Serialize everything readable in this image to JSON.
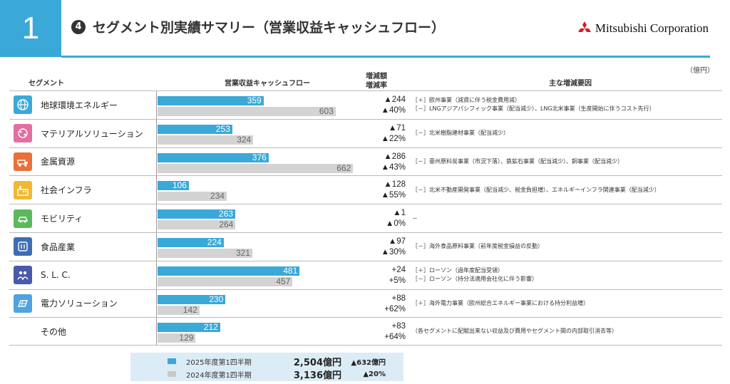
{
  "header": {
    "section_number": "1",
    "circle_number": "4",
    "title": "セグメント別実績サマリー（営業収益キャッシュフロー）",
    "company": "Mitsubishi Corporation",
    "unit": "（億円）"
  },
  "columns": {
    "segment": "セグメント",
    "cashflow": "営業収益キャッシュフロー",
    "change_amount": "増減額",
    "change_rate": "増減率",
    "factors": "主な増減要因"
  },
  "colors": {
    "current": "#3aa9d8",
    "previous": "#d3d3d3"
  },
  "rows": [
    {
      "name": "地球環境エネルギー",
      "icon": "globe-icon",
      "icon_color": "#3aa9d8",
      "chg": "▲244",
      "rate": "▲40%",
      "factors": [
        "［＋］欧州事業（減資に伴う税金費用減）",
        "［－］LNGアジアパシフィック事業（配当減少）、LNG北米事業（生産開始に伴うコスト先行）"
      ]
    },
    {
      "name": "マテリアルソリューション",
      "icon": "materials-icon",
      "icon_color": "#e46ea2",
      "chg": "▲71",
      "rate": "▲22%",
      "factors": [
        "［－］北米樹脂建材事業（配当減少）"
      ]
    },
    {
      "name": "金属資源",
      "icon": "mining-truck-icon",
      "icon_color": "#e8703a",
      "chg": "▲286",
      "rate": "▲43%",
      "factors": [
        "［－］豪州原料炭事業（市況下落）、鉄鉱石事業（配当減少）、銅事業（配当減少）"
      ]
    },
    {
      "name": "社会インフラ",
      "icon": "factory-icon",
      "icon_color": "#f2b830",
      "chg": "▲128",
      "rate": "▲55%",
      "factors": [
        "［－］北米不動産開発事業（配当減少、税金負担増）、エネルギーインフラ関連事業（配当減少）"
      ]
    },
    {
      "name": "モビリティ",
      "icon": "car-icon",
      "icon_color": "#5cb85c",
      "chg": "▲1",
      "rate": "▲0%",
      "factors": [
        "－"
      ]
    },
    {
      "name": "食品産業",
      "icon": "food-icon",
      "icon_color": "#3f6db3",
      "chg": "▲97",
      "rate": "▲30%",
      "factors": [
        "［－］海外食品原料事業（前年度税金損益の反動）"
      ]
    },
    {
      "name": "S. L. C.",
      "icon": "people-icon",
      "icon_color": "#4a5aa8",
      "chg": "+24",
      "rate": "+5%",
      "factors": [
        "［＋］ローソン（過年度配当受領）",
        "［－］ローソン（持分法適用会社化に伴う影響）"
      ]
    },
    {
      "name": "電力ソリューション",
      "icon": "solar-panel-icon",
      "icon_color": "#4fa3e0",
      "chg": "+88",
      "rate": "+62%",
      "factors": [
        "［＋］海外電力事業（欧州総合エネルギー事業における持分利益増）"
      ]
    },
    {
      "name": "その他",
      "icon": "",
      "icon_color": "",
      "chg": "+83",
      "rate": "+64%",
      "factors": [
        "（各セグメントに配賦出来ない収益及び費用やセグメント間の内部取引消去等）"
      ]
    }
  ],
  "legend": {
    "current_label": "2025年度第1四半期",
    "previous_label": "2024年度第1四半期",
    "current_total": "2,504億円",
    "previous_total": "3,136億円",
    "total_change": "▲632億円",
    "total_rate": "▲20%"
  },
  "chart_data": {
    "type": "bar",
    "orientation": "horizontal",
    "categories": [
      "地球環境エネルギー",
      "マテリアルソリューション",
      "金属資源",
      "社会インフラ",
      "モビリティ",
      "食品産業",
      "S. L. C.",
      "電力ソリューション",
      "その他"
    ],
    "series": [
      {
        "name": "2025年度第1四半期",
        "values": [
          359,
          253,
          376,
          106,
          263,
          224,
          481,
          230,
          212
        ]
      },
      {
        "name": "2024年度第1四半期",
        "values": [
          603,
          324,
          662,
          234,
          264,
          321,
          457,
          142,
          129
        ]
      }
    ],
    "title": "営業収益キャッシュフロー",
    "xlim": [
      0,
      700
    ],
    "unit": "（億円）"
  }
}
